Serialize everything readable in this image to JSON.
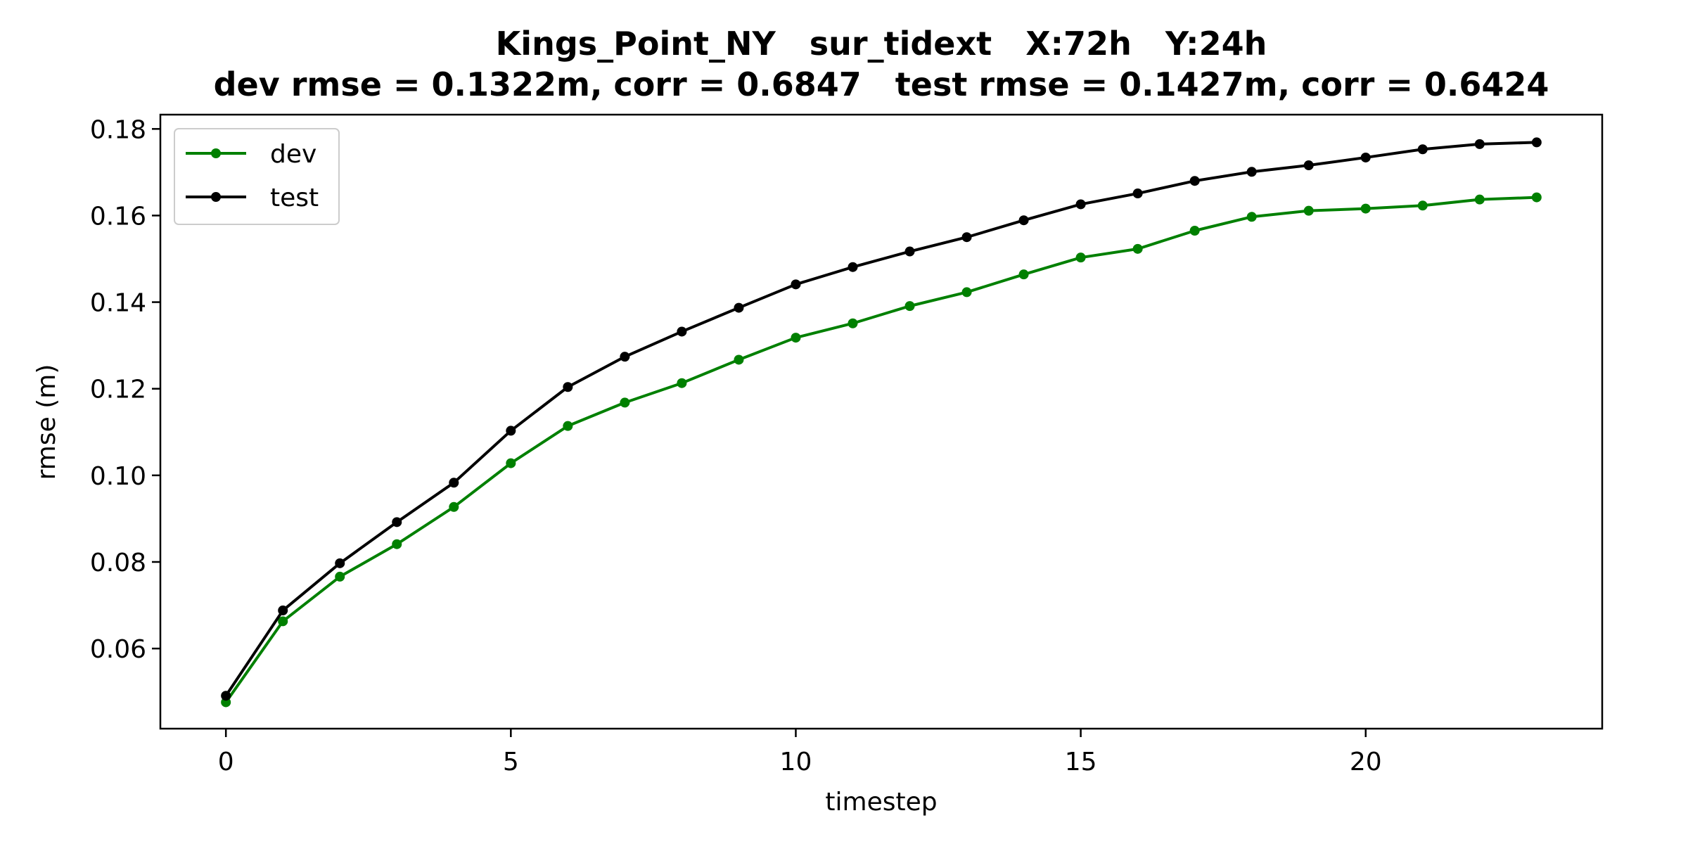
{
  "chart_data": {
    "type": "line",
    "title": "Kings_Point_NY   sur_tidext   X:72h   Y:24h",
    "subtitle": "dev rmse = 0.1322m, corr = 0.6847   test rmse = 0.1427m, corr = 0.6424",
    "xlabel": "timestep",
    "ylabel": "rmse (m)",
    "xlim": [
      -1.15,
      24.15
    ],
    "ylim": [
      0.0415,
      0.1833
    ],
    "xticks": [
      0,
      5,
      10,
      15,
      20
    ],
    "yticks": [
      0.06,
      0.08,
      0.1,
      0.12,
      0.14,
      0.16,
      0.18
    ],
    "ytick_labels": [
      "0.06",
      "0.08",
      "0.10",
      "0.12",
      "0.14",
      "0.16",
      "0.18"
    ],
    "grid": false,
    "legend_position": "top-left",
    "x": [
      0,
      1,
      2,
      3,
      4,
      5,
      6,
      7,
      8,
      9,
      10,
      11,
      12,
      13,
      14,
      15,
      16,
      17,
      18,
      19,
      20,
      21,
      22,
      23
    ],
    "series": [
      {
        "name": "dev",
        "color": "#008000",
        "values": [
          0.0476,
          0.0663,
          0.0766,
          0.0841,
          0.0927,
          0.1028,
          0.1114,
          0.1168,
          0.1213,
          0.1267,
          0.1318,
          0.1351,
          0.1391,
          0.1423,
          0.1464,
          0.1503,
          0.1523,
          0.1565,
          0.1597,
          0.1611,
          0.1616,
          0.1623,
          0.1637,
          0.1642
        ]
      },
      {
        "name": "test",
        "color": "#000000",
        "values": [
          0.0491,
          0.0688,
          0.0797,
          0.0892,
          0.0983,
          0.1103,
          0.1204,
          0.1274,
          0.1332,
          0.1387,
          0.1441,
          0.1481,
          0.1517,
          0.155,
          0.1589,
          0.1626,
          0.1651,
          0.168,
          0.1701,
          0.1716,
          0.1734,
          0.1753,
          0.1765,
          0.1769
        ]
      }
    ]
  }
}
